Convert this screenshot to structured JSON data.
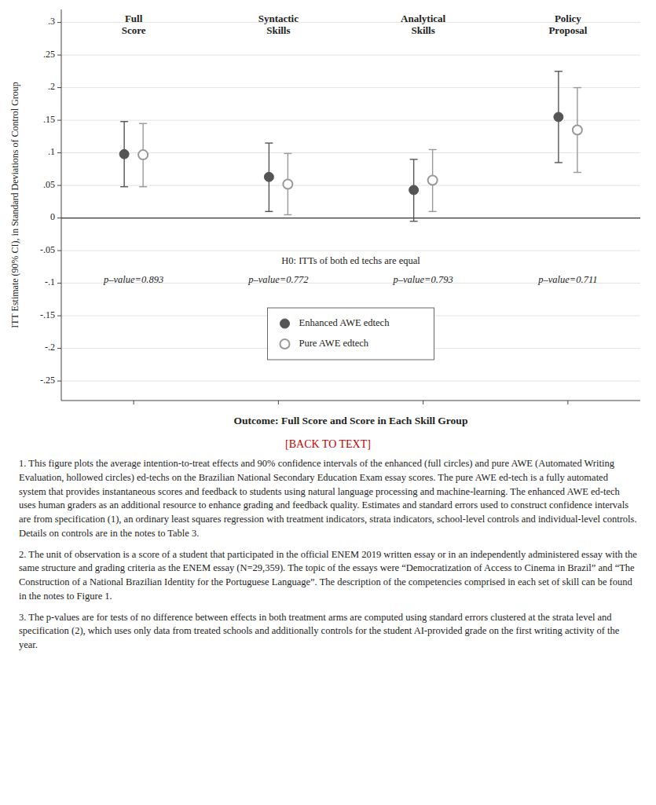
{
  "chart_data": {
    "type": "errorbar",
    "categories": [
      "Full\nScore",
      "Syntactic\nSkills",
      "Analytical\nSkills",
      "Policy\nProposal"
    ],
    "series": [
      {
        "name": "Enhanced AWE edtech",
        "color": "#555555",
        "marker": "circle",
        "values": [
          0.098,
          0.063,
          0.043,
          0.155
        ],
        "ci_low": [
          0.048,
          0.01,
          -0.005,
          0.085
        ],
        "ci_high": [
          0.148,
          0.115,
          0.09,
          0.225
        ]
      },
      {
        "name": "Pure AWE edtech",
        "color": "#999999",
        "marker": "circle-open",
        "values": [
          0.097,
          0.052,
          0.058,
          0.135
        ],
        "ci_low": [
          0.048,
          0.005,
          0.01,
          0.07
        ],
        "ci_high": [
          0.145,
          0.099,
          0.105,
          0.2
        ]
      }
    ],
    "pvalues": [
      "p–value=0.893",
      "p–value=0.772",
      "p–value=0.793",
      "p–value=0.711"
    ],
    "annotations": [
      "H0: ITTs of both ed techs are equal"
    ],
    "xlabel": "Outcome: Full Score and Score in Each Skill Group",
    "ylabel": "ITT Estimate (90% CI), in Standard Deviations of Control Group",
    "ylim": [
      -0.28,
      0.32
    ],
    "yticks": [
      {
        "value": 0.3,
        "label": ".3"
      },
      {
        "value": 0.25,
        "label": ".25"
      },
      {
        "value": 0.2,
        "label": ".2"
      },
      {
        "value": 0.15,
        "label": ".15"
      },
      {
        "value": 0.1,
        "label": ".1"
      },
      {
        "value": 0.05,
        "label": ".05"
      },
      0,
      {
        "value": -0.05,
        "label": "-.05"
      },
      {
        "value": -0.1,
        "label": "-.1"
      },
      {
        "value": -0.15,
        "label": "-.15"
      },
      {
        "value": -0.2,
        "label": "-.2"
      },
      {
        "value": -0.25,
        "label": "-.25"
      }
    ],
    "grid": true,
    "legend": "bottom",
    "notes_heading": "[BACK TO TEXT]",
    "notes": [
      "1. This figure plots the average intention-to-treat effects and 90% confidence intervals of the enhanced (full circles) and pure AWE (Automated Writing Evaluation, hollowed circles) ed-techs on the Brazilian National Secondary Education Exam essay scores. The pure AWE ed-tech is a fully automated system that provides instantaneous scores and feedback to students using natural language processing and machine-learning. The enhanced AWE ed-tech uses human graders as an additional resource to enhance grading and feedback quality. Estimates and standard errors used to construct confidence intervals are from specification (1), an ordinary least squares regression with treatment indicators, strata indicators, school-level controls and individual-level controls. Details on controls are in the notes to Table 3.",
      "2. The unit of observation is a score of a student that participated in the official ENEM 2019 written essay or in an independently administered essay with the same structure and grading criteria as the ENEM essay (N=29,359). The topic of the essays were “Democratization of Access to Cinema in Brazil” and “The Construction of a National Brazilian Identity for the Portuguese Language”. The description of the competencies comprised in each set of skill can be found in the notes to Figure 1.",
      "3. The p-values are for tests of no difference between effects in both treatment arms are computed using standard errors clustered at the strata level and specification (2), which uses only data from treated schools and additionally controls for the student AI-provided grade on the first writing activity of the year."
    ]
  }
}
